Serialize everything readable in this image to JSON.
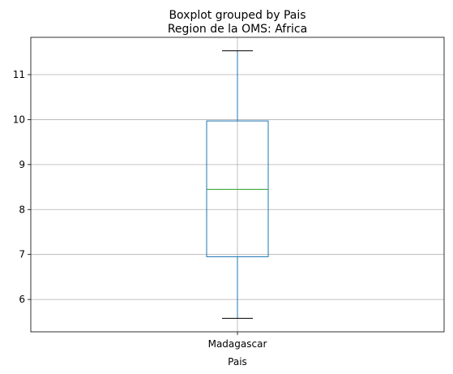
{
  "chart_data": {
    "type": "boxplot",
    "suptitle": "Boxplot grouped by Pais",
    "title": "Region de la OMS: Africa",
    "xlabel": "Pais",
    "ylabel": "",
    "categories": [
      "Madagascar"
    ],
    "boxes": [
      {
        "category": "Madagascar",
        "whisker_low": 5.58,
        "q1": 6.95,
        "median": 8.45,
        "q3": 9.97,
        "whisker_high": 11.53
      }
    ],
    "ylim": [
      5.28,
      11.83
    ],
    "yticks": [
      6,
      7,
      8,
      9,
      10,
      11
    ],
    "grid": true,
    "colors": {
      "box": "#1f77b4",
      "median": "#2ca02c",
      "whisker": "#1f77b4",
      "cap": "#000000",
      "grid": "#b0b0b0",
      "axes": "#000000"
    }
  }
}
